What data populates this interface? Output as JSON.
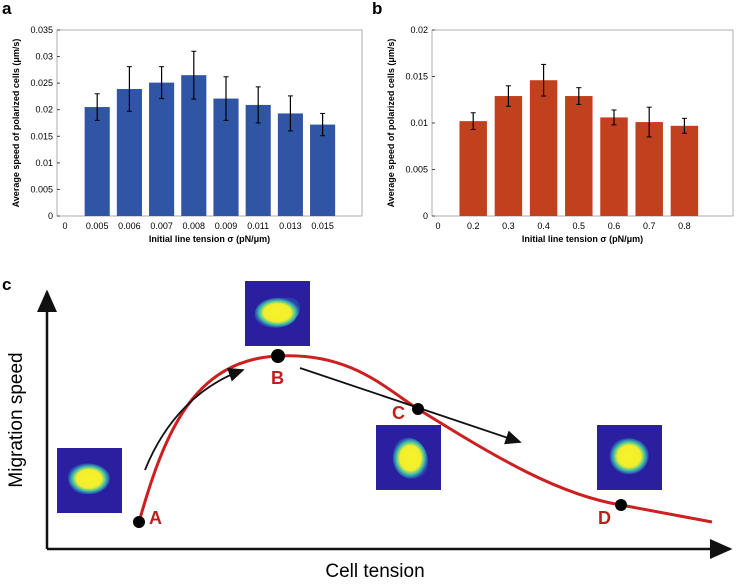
{
  "chart_data": [
    {
      "type": "bar",
      "panel": "a",
      "x_label": "Initial line tension σ (pN/μm)",
      "y_label": "Average speed of polarized cells (μm/s)",
      "categories": [
        "0",
        "0.005",
        "0.006",
        "0.007",
        "0.008",
        "0.009",
        "0.011",
        "0.013",
        "0.015"
      ],
      "values": [
        null,
        0.0205,
        0.0239,
        0.0251,
        0.0265,
        0.0221,
        0.0209,
        0.0193,
        0.0172
      ],
      "errors": [
        null,
        0.0025,
        0.0042,
        0.003,
        0.0045,
        0.0041,
        0.0034,
        0.0033,
        0.0021
      ],
      "color": "#2f55a4",
      "ylim": [
        0,
        0.035
      ],
      "yticks": [
        0,
        0.005,
        0.01,
        0.015,
        0.02,
        0.025,
        0.03,
        0.035
      ]
    },
    {
      "type": "bar",
      "panel": "b",
      "x_label": "Initial line tension σ (pN/μm)",
      "y_label": "Average speed of polarized cells (μm/s)",
      "categories": [
        "0",
        "0.2",
        "0.3",
        "0.4",
        "0.5",
        "0.6",
        "0.7",
        "0.8"
      ],
      "values": [
        null,
        0.0102,
        0.0129,
        0.0146,
        0.0129,
        0.0106,
        0.0101,
        0.0097
      ],
      "errors": [
        null,
        0.0009,
        0.0011,
        0.0017,
        0.0009,
        0.0008,
        0.0016,
        0.0008
      ],
      "color": "#c1401e",
      "ylim": [
        0,
        0.02
      ],
      "yticks": [
        0,
        0.005,
        0.01,
        0.015,
        0.02
      ]
    }
  ],
  "diagram": {
    "panel": "c",
    "y_label": "Migration speed",
    "x_label": "Cell tension",
    "points": [
      "A",
      "B",
      "C",
      "D"
    ]
  }
}
